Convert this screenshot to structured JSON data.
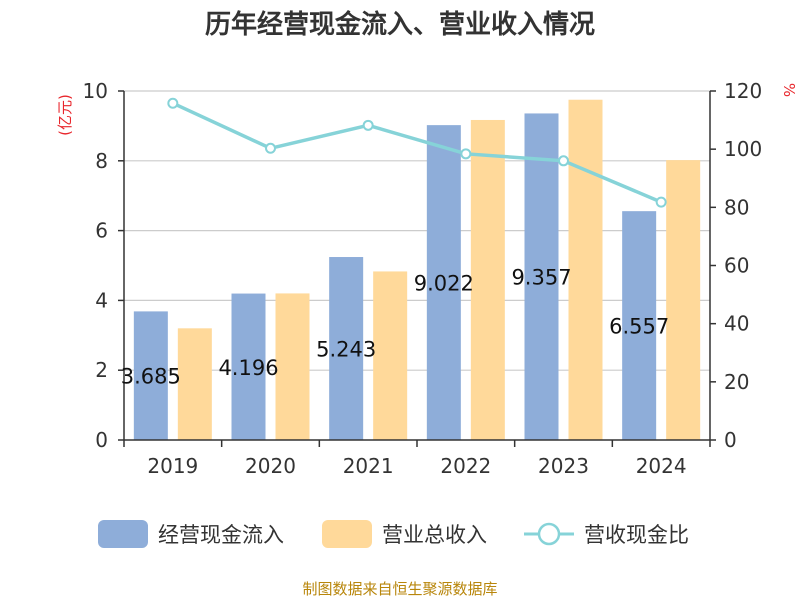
{
  "chart_data": {
    "type": "bar",
    "title": "历年经营现金流入、营业收入情况",
    "left_unit": "(亿元)",
    "right_unit": "%",
    "categories": [
      "2019",
      "2020",
      "2021",
      "2022",
      "2023",
      "2024"
    ],
    "left_ylim": [
      0,
      10
    ],
    "left_ticks": [
      "0",
      "2",
      "4",
      "6",
      "8",
      "10"
    ],
    "right_ylim": [
      0,
      120
    ],
    "right_ticks": [
      "0",
      "20",
      "40",
      "60",
      "80",
      "100",
      "120"
    ],
    "series": [
      {
        "name": "经营现金流入",
        "type": "bar",
        "axis": "left",
        "color": "#8eadd9",
        "values": [
          3.685,
          4.196,
          5.243,
          9.022,
          9.357,
          6.557
        ],
        "labels": [
          "3.685",
          "4.196",
          "5.243",
          "9.022",
          "9.357",
          "6.557"
        ]
      },
      {
        "name": "营业总收入",
        "type": "bar",
        "axis": "left",
        "color": "#ffd99a",
        "values": [
          3.2,
          4.2,
          4.83,
          9.17,
          9.75,
          8.02
        ]
      },
      {
        "name": "营收现金比",
        "type": "line",
        "axis": "right",
        "color": "#86d3d8",
        "values": [
          115.8,
          100.3,
          108.2,
          98.4,
          96.0,
          81.8
        ]
      }
    ],
    "grid": true,
    "legend_position": "bottom"
  },
  "source_text": "制图数据来自恒生聚源数据库"
}
